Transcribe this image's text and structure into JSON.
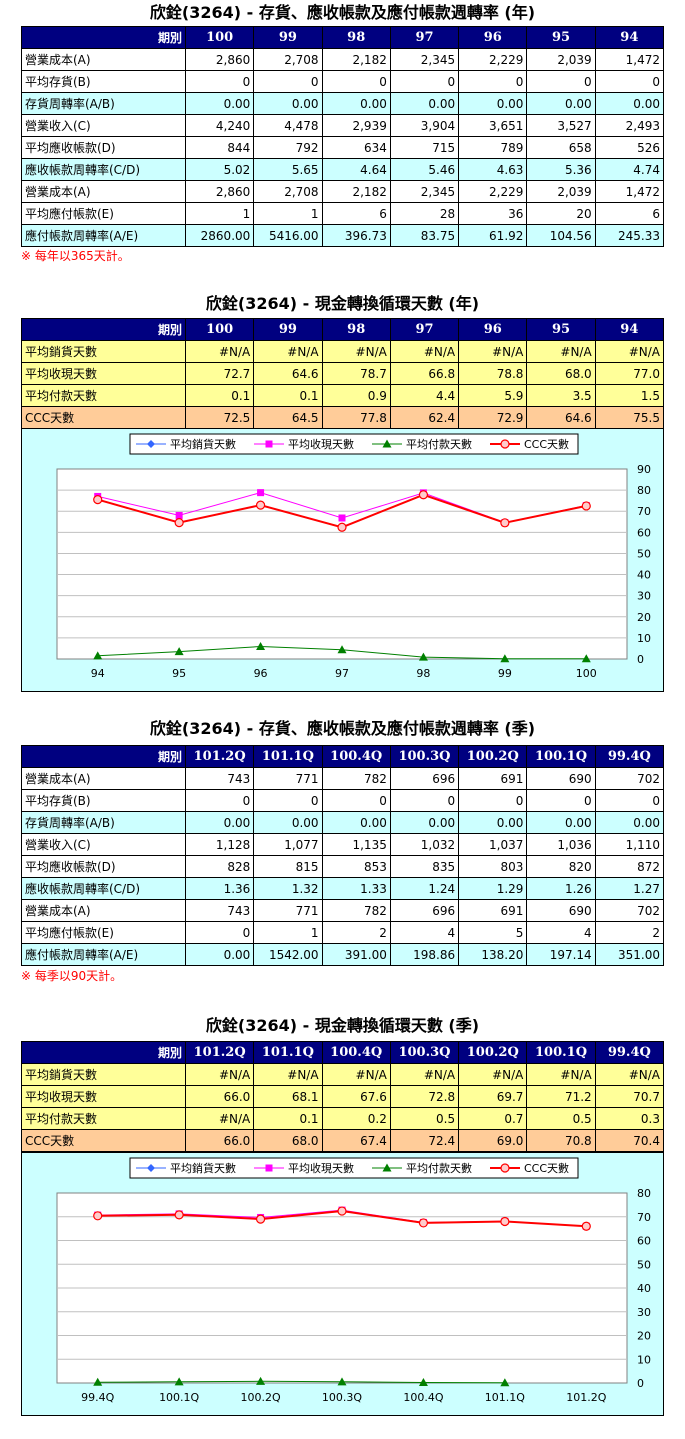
{
  "sections": {
    "annual_turnover": {
      "title": "欣銓(3264) - 存貨、應收帳款及應付帳款週轉率 (年)",
      "corner_label": "期別",
      "columns": [
        "100",
        "99",
        "98",
        "97",
        "96",
        "95",
        "94"
      ],
      "rows": [
        {
          "label": "營業成本(A)",
          "values": [
            "2,860",
            "2,708",
            "2,182",
            "2,345",
            "2,229",
            "2,039",
            "1,472"
          ]
        },
        {
          "label": "平均存貨(B)",
          "values": [
            "0",
            "0",
            "0",
            "0",
            "0",
            "0",
            "0"
          ]
        },
        {
          "label": "存貨周轉率(A/B)",
          "values": [
            "0.00",
            "0.00",
            "0.00",
            "0.00",
            "0.00",
            "0.00",
            "0.00"
          ]
        },
        {
          "label": "營業收入(C)",
          "values": [
            "4,240",
            "4,478",
            "2,939",
            "3,904",
            "3,651",
            "3,527",
            "2,493"
          ]
        },
        {
          "label": "平均應收帳款(D)",
          "values": [
            "844",
            "792",
            "634",
            "715",
            "789",
            "658",
            "526"
          ]
        },
        {
          "label": "應收帳款周轉率(C/D)",
          "values": [
            "5.02",
            "5.65",
            "4.64",
            "5.46",
            "4.63",
            "5.36",
            "4.74"
          ]
        },
        {
          "label": "營業成本(A)",
          "values": [
            "2,860",
            "2,708",
            "2,182",
            "2,345",
            "2,229",
            "2,039",
            "1,472"
          ]
        },
        {
          "label": "平均應付帳款(E)",
          "values": [
            "1",
            "1",
            "6",
            "28",
            "36",
            "20",
            "6"
          ]
        },
        {
          "label": "應付帳款周轉率(A/E)",
          "values": [
            "2860.00",
            "5416.00",
            "396.73",
            "83.75",
            "61.92",
            "104.56",
            "245.33"
          ]
        }
      ],
      "note": "※ 每年以365天計。"
    },
    "annual_ccc": {
      "title": "欣銓(3264) - 現金轉換循環天數 (年)",
      "corner_label": "期別",
      "columns": [
        "100",
        "99",
        "98",
        "97",
        "96",
        "95",
        "94"
      ],
      "rows": [
        {
          "label": "平均銷貨天數",
          "values": [
            "#N/A",
            "#N/A",
            "#N/A",
            "#N/A",
            "#N/A",
            "#N/A",
            "#N/A"
          ]
        },
        {
          "label": "平均收現天數",
          "values": [
            "72.7",
            "64.6",
            "78.7",
            "66.8",
            "78.8",
            "68.0",
            "77.0"
          ]
        },
        {
          "label": "平均付款天數",
          "values": [
            "0.1",
            "0.1",
            "0.9",
            "4.4",
            "5.9",
            "3.5",
            "1.5"
          ]
        },
        {
          "label": "CCC天數",
          "values": [
            "72.5",
            "64.5",
            "77.8",
            "62.4",
            "72.9",
            "64.6",
            "75.5"
          ]
        }
      ]
    },
    "quarterly_turnover": {
      "title": "欣銓(3264) - 存貨、應收帳款及應付帳款週轉率 (季)",
      "corner_label": "期別",
      "columns": [
        "101.2Q",
        "101.1Q",
        "100.4Q",
        "100.3Q",
        "100.2Q",
        "100.1Q",
        "99.4Q"
      ],
      "rows": [
        {
          "label": "營業成本(A)",
          "values": [
            "743",
            "771",
            "782",
            "696",
            "691",
            "690",
            "702"
          ]
        },
        {
          "label": "平均存貨(B)",
          "values": [
            "0",
            "0",
            "0",
            "0",
            "0",
            "0",
            "0"
          ]
        },
        {
          "label": "存貨周轉率(A/B)",
          "values": [
            "0.00",
            "0.00",
            "0.00",
            "0.00",
            "0.00",
            "0.00",
            "0.00"
          ]
        },
        {
          "label": "營業收入(C)",
          "values": [
            "1,128",
            "1,077",
            "1,135",
            "1,032",
            "1,037",
            "1,036",
            "1,110"
          ]
        },
        {
          "label": "平均應收帳款(D)",
          "values": [
            "828",
            "815",
            "853",
            "835",
            "803",
            "820",
            "872"
          ]
        },
        {
          "label": "應收帳款周轉率(C/D)",
          "values": [
            "1.36",
            "1.32",
            "1.33",
            "1.24",
            "1.29",
            "1.26",
            "1.27"
          ]
        },
        {
          "label": "營業成本(A)",
          "values": [
            "743",
            "771",
            "782",
            "696",
            "691",
            "690",
            "702"
          ]
        },
        {
          "label": "平均應付帳款(E)",
          "values": [
            "0",
            "1",
            "2",
            "4",
            "5",
            "4",
            "2"
          ]
        },
        {
          "label": "應付帳款周轉率(A/E)",
          "values": [
            "0.00",
            "1542.00",
            "391.00",
            "198.86",
            "138.20",
            "197.14",
            "351.00"
          ]
        }
      ],
      "note": "※ 每季以90天計。"
    },
    "quarterly_ccc": {
      "title": "欣銓(3264) - 現金轉換循環天數 (季)",
      "corner_label": "期別",
      "columns": [
        "101.2Q",
        "101.1Q",
        "100.4Q",
        "100.3Q",
        "100.2Q",
        "100.1Q",
        "99.4Q"
      ],
      "rows": [
        {
          "label": "平均銷貨天數",
          "values": [
            "#N/A",
            "#N/A",
            "#N/A",
            "#N/A",
            "#N/A",
            "#N/A",
            "#N/A"
          ]
        },
        {
          "label": "平均收現天數",
          "values": [
            "66.0",
            "68.1",
            "67.6",
            "72.8",
            "69.7",
            "71.2",
            "70.7"
          ]
        },
        {
          "label": "平均付款天數",
          "values": [
            "#N/A",
            "0.1",
            "0.2",
            "0.5",
            "0.7",
            "0.5",
            "0.3"
          ]
        },
        {
          "label": "CCC天數",
          "values": [
            "66.0",
            "68.0",
            "67.4",
            "72.4",
            "69.0",
            "70.8",
            "70.4"
          ]
        }
      ]
    }
  },
  "colors": {
    "header_bg": "#000080",
    "row_cyan": "#ccffff",
    "row_yellow": "#ffff99",
    "row_orange": "#ffcc99",
    "note": "#ff0000",
    "series_sales_days": "#3366ff",
    "series_collection_days": "#ff00ff",
    "series_payment_days": "#008000",
    "series_ccc_days": "#ff0000"
  },
  "chart_data": [
    {
      "type": "line",
      "categories": [
        "94",
        "95",
        "96",
        "97",
        "98",
        "99",
        "100"
      ],
      "ylim": [
        0,
        90
      ],
      "yticks": [
        0,
        10,
        20,
        30,
        40,
        50,
        60,
        70,
        80,
        90
      ],
      "y_axis_side": "right",
      "grid": true,
      "legend_position": "top",
      "series": [
        {
          "name": "平均銷貨天數",
          "marker": "diamond",
          "values": [
            null,
            null,
            null,
            null,
            null,
            null,
            null
          ]
        },
        {
          "name": "平均收現天數",
          "marker": "square",
          "values": [
            77.0,
            68.0,
            78.8,
            66.8,
            78.7,
            64.6,
            72.7
          ]
        },
        {
          "name": "平均付款天數",
          "marker": "triangle",
          "values": [
            1.5,
            3.5,
            5.9,
            4.4,
            0.9,
            0.1,
            0.1
          ]
        },
        {
          "name": "CCC天數",
          "marker": "circle",
          "values": [
            75.5,
            64.6,
            72.9,
            62.4,
            77.8,
            64.5,
            72.5
          ]
        }
      ]
    },
    {
      "type": "line",
      "categories": [
        "99.4Q",
        "100.1Q",
        "100.2Q",
        "100.3Q",
        "100.4Q",
        "101.1Q",
        "101.2Q"
      ],
      "ylim": [
        0,
        80
      ],
      "yticks": [
        0,
        10,
        20,
        30,
        40,
        50,
        60,
        70,
        80
      ],
      "y_axis_side": "right",
      "grid": true,
      "legend_position": "top",
      "series": [
        {
          "name": "平均銷貨天數",
          "marker": "diamond",
          "values": [
            null,
            null,
            null,
            null,
            null,
            null,
            null
          ]
        },
        {
          "name": "平均收現天數",
          "marker": "square",
          "values": [
            70.7,
            71.2,
            69.7,
            72.8,
            67.6,
            68.1,
            66.0
          ]
        },
        {
          "name": "平均付款天數",
          "marker": "triangle",
          "values": [
            0.3,
            0.5,
            0.7,
            0.5,
            0.2,
            0.1,
            null
          ]
        },
        {
          "name": "CCC天數",
          "marker": "circle",
          "values": [
            70.4,
            70.8,
            69.0,
            72.4,
            67.4,
            68.0,
            66.0
          ]
        }
      ]
    }
  ]
}
